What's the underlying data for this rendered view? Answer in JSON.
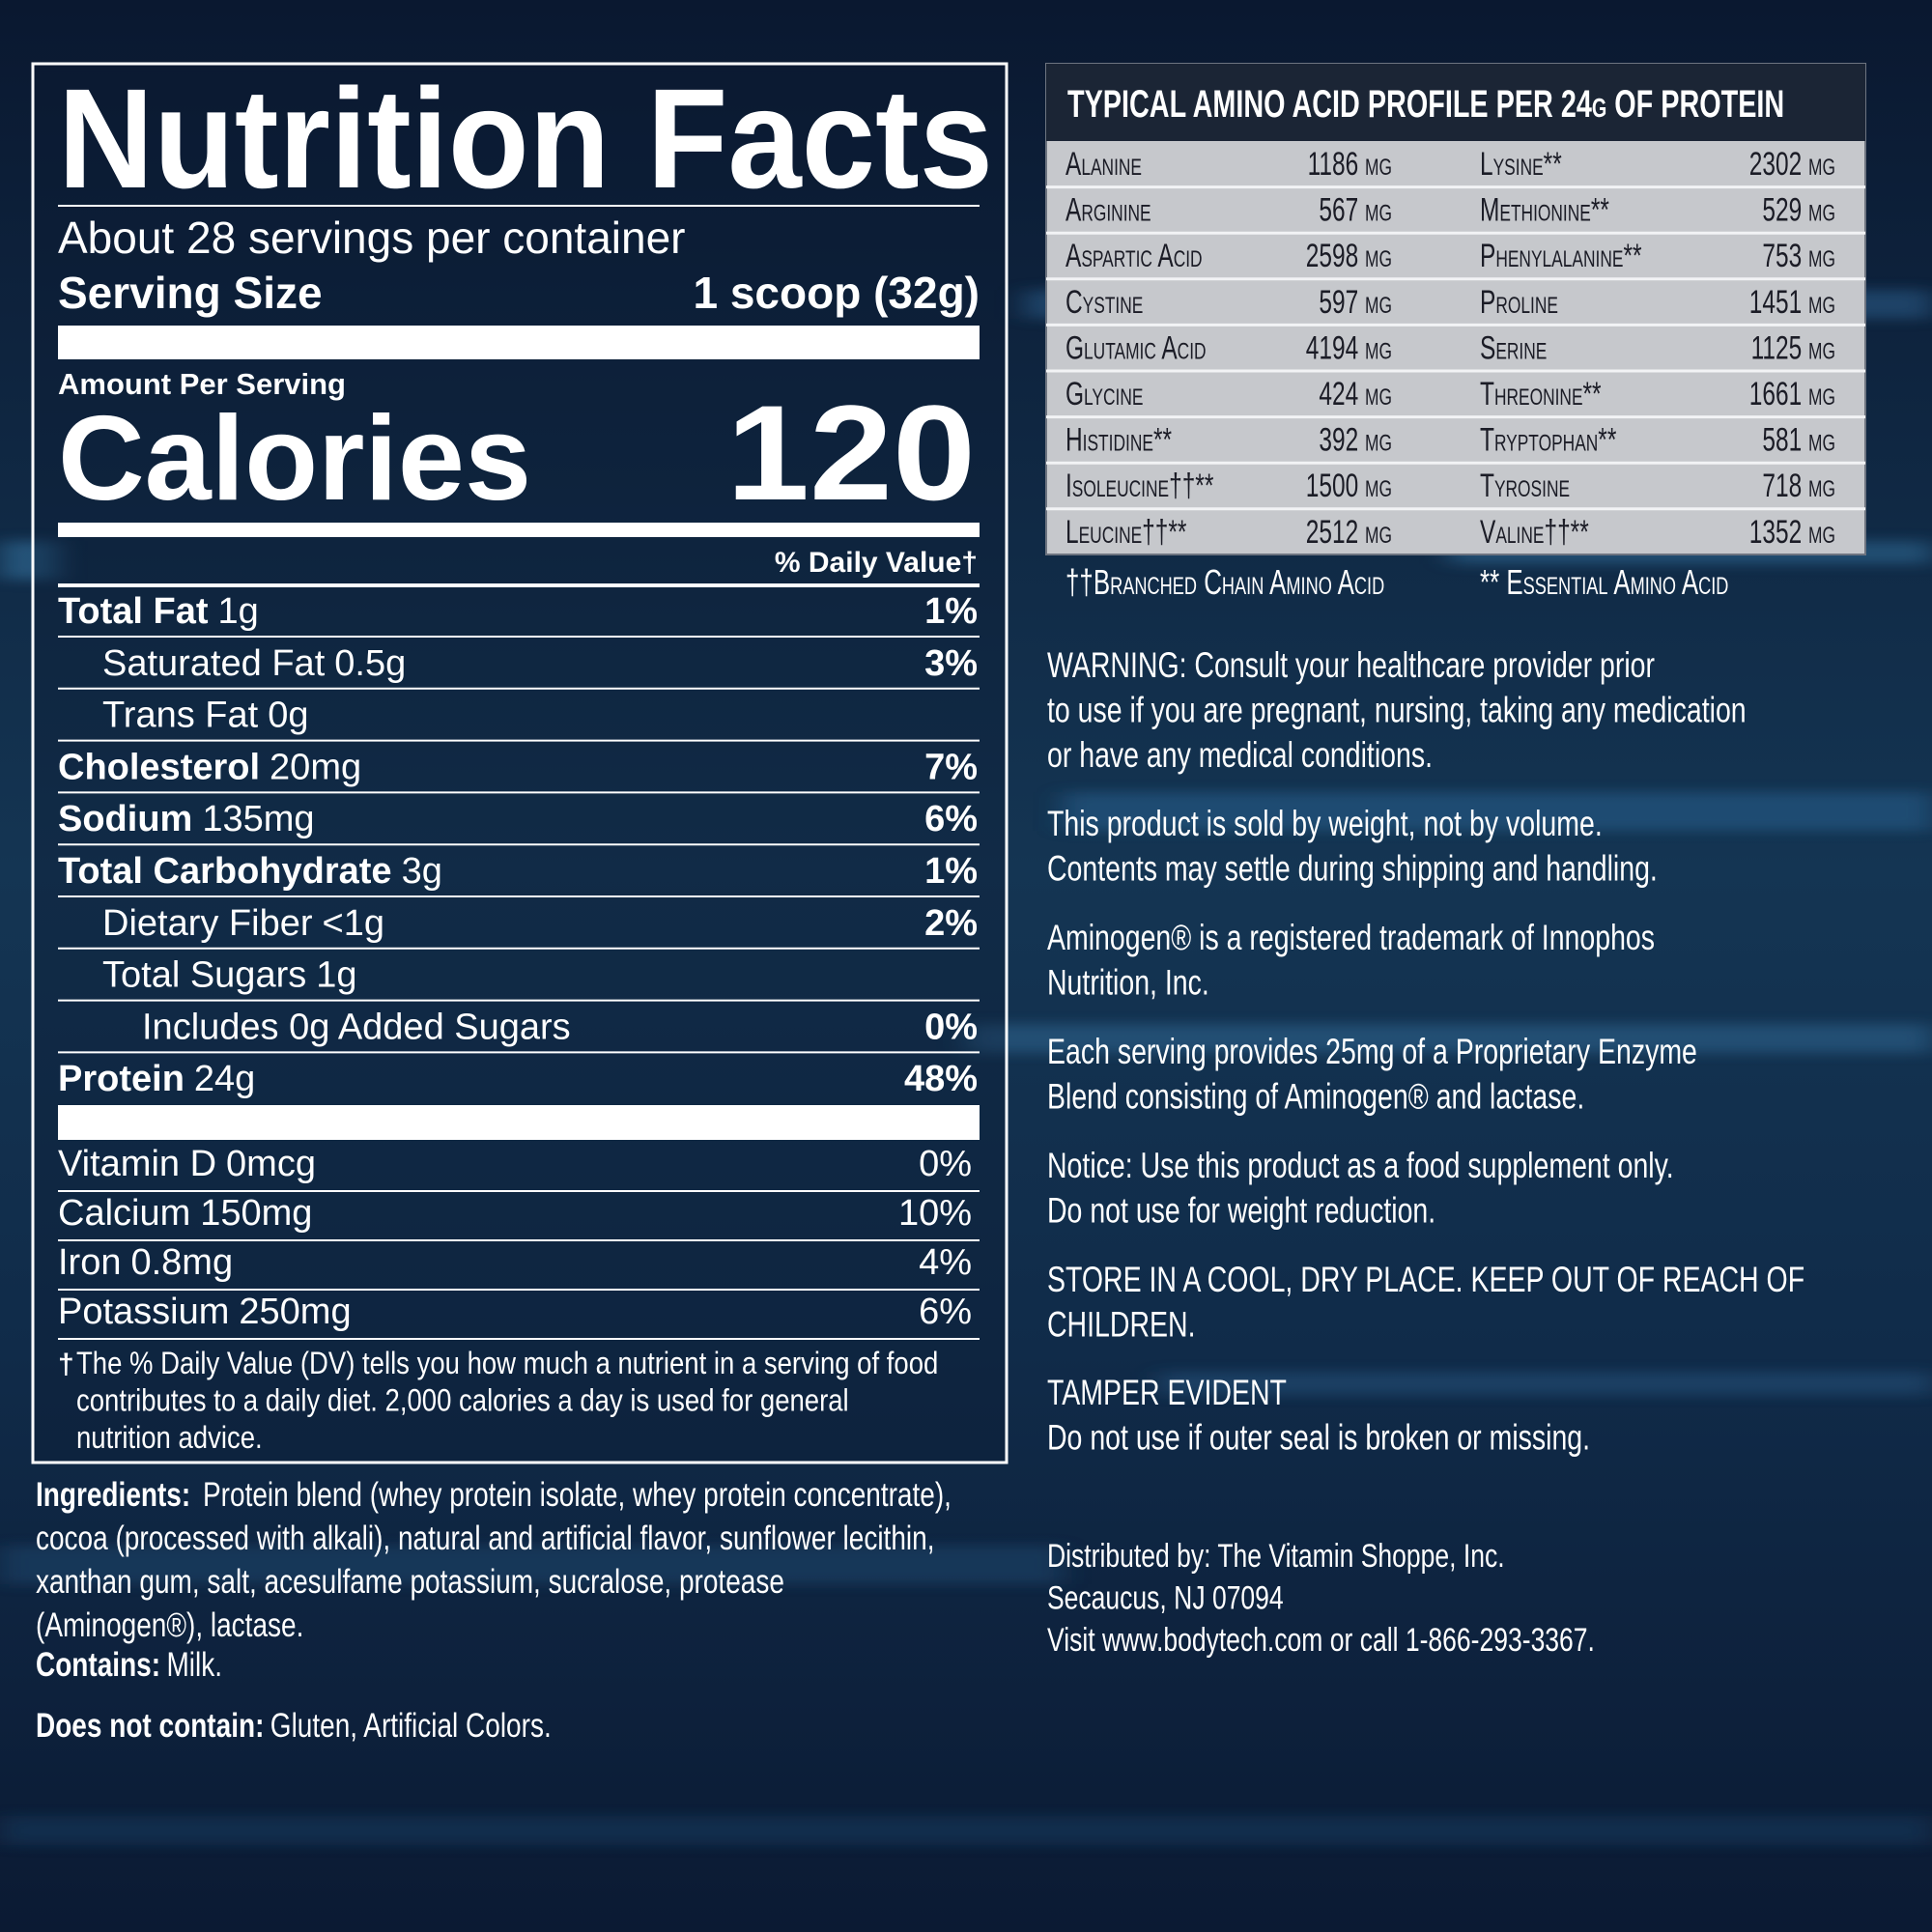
{
  "nutrition_facts": {
    "title": "Nutrition Facts",
    "servings": "About 28 servings per container",
    "serving_size": {
      "label": "Serving Size",
      "value": "1 scoop (32g)"
    },
    "amount_per_serving": "Amount Per Serving",
    "calories": {
      "label": "Calories",
      "value": 120
    },
    "daily_value_header": "% Daily Value†",
    "nutrients": [
      {
        "name": "Total Fat",
        "amount": "1g",
        "dv": "1%",
        "sub": [
          {
            "name": "Saturated Fat",
            "amount": "0.5g",
            "dv": "3%"
          },
          {
            "name": "Trans Fat",
            "amount": "0g"
          }
        ]
      },
      {
        "name": "Cholesterol",
        "amount": "20mg",
        "dv": "7%"
      },
      {
        "name": "Sodium",
        "amount": "135mg",
        "dv": "6%"
      },
      {
        "name": "Total Carbohydrate",
        "amount": "3g",
        "dv": "1%",
        "sub": [
          {
            "name": "Dietary Fiber",
            "amount": "<1g",
            "dv": "2%"
          },
          {
            "name": "Total Sugars",
            "amount": "1g",
            "sub": [
              {
                "name": "Includes 0g Added Sugars",
                "dv": "0%"
              }
            ]
          }
        ]
      },
      {
        "name": "Protein",
        "amount": "24g",
        "dv": "48%"
      }
    ],
    "minerals": [
      {
        "name": "Vitamin D",
        "amount": "0mcg",
        "dv": "0%"
      },
      {
        "name": "Calcium",
        "amount": "150mg",
        "dv": "10%"
      },
      {
        "name": "Iron",
        "amount": "0.8mg",
        "dv": "4%"
      },
      {
        "name": "Potassium",
        "amount": "250mg",
        "dv": "6%"
      }
    ],
    "footnote": {
      "mark": "†",
      "lines": [
        "The % Daily Value (DV) tells you how much a nutrient in a serving of food",
        "contributes to a daily diet. 2,000 calories a day is used for general",
        "nutrition advice."
      ]
    }
  },
  "ingredients": {
    "label": "Ingredients:",
    "lines": [
      "Protein blend (whey protein isolate, whey protein concentrate),",
      "cocoa (processed with alkali), natural and artificial flavor, sunflower lecithin,",
      "xanthan gum, salt, acesulfame potassium, sucralose, protease",
      "(Aminogen®), lactase."
    ]
  },
  "contains": {
    "label": "Contains:",
    "value": "Milk."
  },
  "does_not_contain": {
    "label": "Does not contain:",
    "value": "Gluten, Artificial Colors."
  },
  "amino_acids": {
    "title": "TYPICAL AMINO ACID PROFILE PER 24g OF PROTEIN",
    "left": [
      {
        "name": "Alanine",
        "amount": "1186 mg"
      },
      {
        "name": "Arginine",
        "amount": "567 mg"
      },
      {
        "name": "Aspartic Acid",
        "amount": "2598 mg"
      },
      {
        "name": "Cystine",
        "amount": "597 mg"
      },
      {
        "name": "Glutamic Acid",
        "amount": "4194 mg"
      },
      {
        "name": "Glycine",
        "amount": "424 mg"
      },
      {
        "name": "Histidine**",
        "amount": "392 mg"
      },
      {
        "name": "Isoleucine††**",
        "amount": "1500 mg"
      },
      {
        "name": "Leucine††**",
        "amount": "2512 mg"
      }
    ],
    "right": [
      {
        "name": "Lysine**",
        "amount": "2302 mg"
      },
      {
        "name": "Methionine**",
        "amount": "529 mg"
      },
      {
        "name": "Phenylalanine**",
        "amount": "753 mg"
      },
      {
        "name": "Proline",
        "amount": "1451 mg"
      },
      {
        "name": "Serine",
        "amount": "1125 mg"
      },
      {
        "name": "Threonine**",
        "amount": "1661 mg"
      },
      {
        "name": "Tryptophan**",
        "amount": "581 mg"
      },
      {
        "name": "Tyrosine",
        "amount": "718 mg"
      },
      {
        "name": "Valine††**",
        "amount": "1352 mg"
      }
    ],
    "footnotes": [
      "††Branched Chain Amino Acid",
      "** Essential Amino Acid"
    ]
  },
  "notes": [
    [
      "WARNING: Consult your healthcare provider prior",
      "to use if you are pregnant, nursing, taking any medication",
      "or have any medical conditions."
    ],
    [
      "This product is sold by weight, not by volume.",
      "Contents may settle during shipping and handling."
    ],
    [
      "Aminogen® is a registered trademark of Innophos",
      "Nutrition, Inc."
    ],
    [
      "Each serving provides 25mg of a Proprietary Enzyme",
      "Blend consisting of Aminogen® and lactase."
    ],
    [
      "Notice: Use this product as a food supplement only.",
      "Do not use for weight reduction."
    ],
    [
      "STORE IN A COOL, DRY PLACE. KEEP OUT OF REACH OF",
      "CHILDREN."
    ],
    [
      "TAMPER EVIDENT",
      "Do not use if outer seal is broken or missing."
    ]
  ],
  "distributor": [
    "Distributed by: The Vitamin Shoppe, Inc.",
    "Secaucus, NJ 07094",
    "Visit www.bodytech.com or call 1-866-293-3367."
  ]
}
